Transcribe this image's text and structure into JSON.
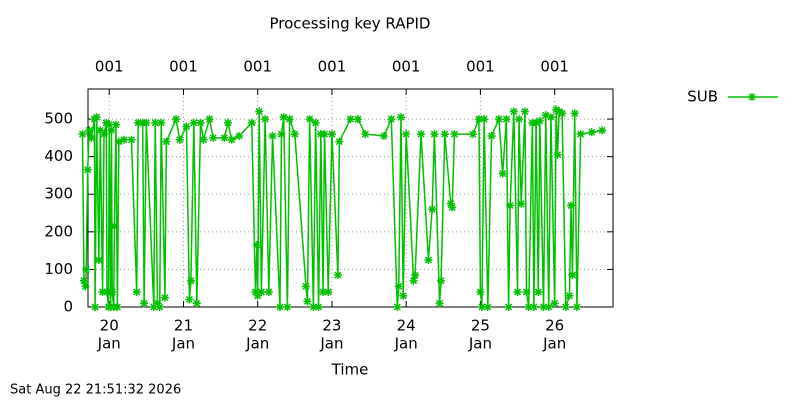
{
  "chart_data": {
    "type": "line",
    "title": "Processing key RAPID",
    "xlabel": "Time",
    "footer": "Sat Aug 22 21:51:32 2026",
    "xlim": [
      19.714,
      26.786
    ],
    "ylim": [
      0,
      580
    ],
    "yticks": [
      0,
      100,
      200,
      300,
      400,
      500
    ],
    "xticks": [
      {
        "value": 20,
        "label": "20",
        "sublabel": "Jan"
      },
      {
        "value": 21,
        "label": "21",
        "sublabel": "Jan"
      },
      {
        "value": 22,
        "label": "22",
        "sublabel": "Jan"
      },
      {
        "value": 23,
        "label": "23",
        "sublabel": "Jan"
      },
      {
        "value": 24,
        "label": "24",
        "sublabel": "Jan"
      },
      {
        "value": 25,
        "label": "25",
        "sublabel": "Jan"
      },
      {
        "value": 26,
        "label": "26",
        "sublabel": "Jan"
      }
    ],
    "x2ticks": [
      {
        "value": 20,
        "label": "001"
      },
      {
        "value": 21,
        "label": "001"
      },
      {
        "value": 22,
        "label": "001"
      },
      {
        "value": 23,
        "label": "001"
      },
      {
        "value": 24,
        "label": "001"
      },
      {
        "value": 25,
        "label": "001"
      },
      {
        "value": 26,
        "label": "001"
      }
    ],
    "grid": true,
    "series": [
      {
        "name": "SUB",
        "color": "#00c000",
        "x": [
          19.64,
          19.66,
          19.68,
          19.69,
          19.71,
          19.73,
          19.76,
          19.8,
          19.81,
          19.83,
          19.86,
          19.88,
          19.91,
          19.93,
          19.96,
          19.97,
          19.99,
          20.0,
          20.02,
          20.03,
          20.04,
          20.06,
          20.07,
          20.09,
          20.11,
          20.13,
          20.2,
          20.3,
          20.37,
          20.39,
          20.45,
          20.47,
          20.5,
          20.6,
          20.62,
          20.65,
          20.68,
          20.7,
          20.75,
          20.77,
          20.9,
          20.95,
          21.04,
          21.08,
          21.1,
          21.14,
          21.18,
          21.23,
          21.27,
          21.35,
          21.4,
          21.55,
          21.6,
          21.65,
          21.75,
          21.92,
          21.97,
          21.99,
          22.0,
          22.02,
          22.05,
          22.1,
          22.15,
          22.2,
          22.3,
          22.32,
          22.35,
          22.4,
          22.43,
          22.5,
          22.65,
          22.67,
          22.7,
          22.75,
          22.78,
          22.82,
          22.85,
          22.88,
          22.9,
          22.95,
          23.0,
          23.08,
          23.1,
          23.25,
          23.35,
          23.45,
          23.7,
          23.8,
          23.88,
          23.9,
          23.93,
          23.96,
          24.0,
          24.1,
          24.12,
          24.2,
          24.3,
          24.35,
          24.38,
          24.45,
          24.47,
          24.52,
          24.6,
          24.62,
          24.65,
          24.9,
          24.98,
          25.0,
          25.02,
          25.05,
          25.1,
          25.15,
          25.25,
          25.3,
          25.35,
          25.38,
          25.4,
          25.45,
          25.5,
          25.52,
          25.55,
          25.6,
          25.62,
          25.65,
          25.7,
          25.72,
          25.75,
          25.78,
          25.8,
          25.85,
          25.88,
          25.92,
          25.95,
          26.0,
          26.02,
          26.04,
          26.06,
          26.1,
          26.15,
          26.2,
          26.22,
          26.24,
          26.27,
          26.3,
          26.35,
          26.5,
          26.64
        ],
        "values": [
          460,
          70,
          55,
          100,
          365,
          470,
          450,
          500,
          0,
          505,
          125,
          470,
          40,
          460,
          490,
          40,
          0,
          485,
          0,
          470,
          40,
          0,
          215,
          485,
          0,
          440,
          445,
          445,
          40,
          490,
          490,
          10,
          490,
          0,
          490,
          10,
          0,
          490,
          25,
          440,
          500,
          445,
          480,
          20,
          70,
          490,
          10,
          490,
          445,
          500,
          450,
          450,
          490,
          445,
          455,
          490,
          40,
          165,
          30,
          520,
          40,
          500,
          40,
          455,
          0,
          460,
          505,
          0,
          500,
          460,
          55,
          15,
          500,
          0,
          490,
          0,
          460,
          40,
          460,
          40,
          460,
          85,
          440,
          500,
          500,
          460,
          455,
          500,
          0,
          55,
          505,
          30,
          460,
          70,
          85,
          460,
          125,
          260,
          460,
          10,
          70,
          460,
          275,
          265,
          460,
          460,
          500,
          40,
          0,
          500,
          0,
          455,
          500,
          355,
          500,
          0,
          270,
          520,
          40,
          500,
          275,
          520,
          40,
          0,
          490,
          0,
          490,
          40,
          495,
          0,
          510,
          0,
          505,
          10,
          525,
          405,
          520,
          515,
          0,
          30,
          270,
          85,
          515,
          0,
          460,
          465,
          470
        ]
      }
    ]
  }
}
